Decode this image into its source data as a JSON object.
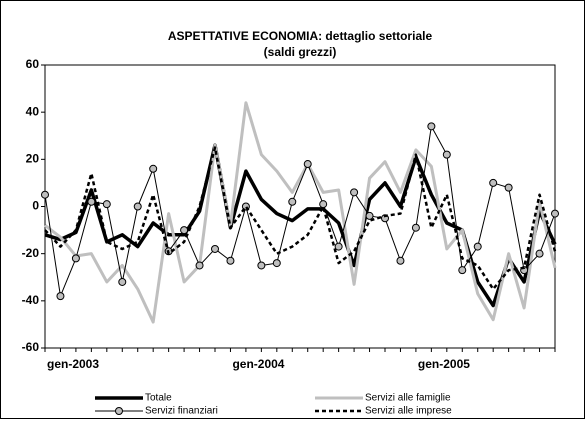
{
  "chart_data": {
    "type": "line",
    "title": "ASPETTATIVE ECONOMIA: dettaglio settoriale",
    "subtitle": "(saldi grezzi)",
    "categories": [
      "gen-2003",
      null,
      null,
      null,
      null,
      null,
      null,
      null,
      null,
      null,
      null,
      null,
      "gen-2004",
      null,
      null,
      null,
      null,
      null,
      null,
      null,
      null,
      null,
      null,
      null,
      "gen-2005",
      null,
      null,
      null,
      null,
      null,
      null,
      null,
      null,
      null
    ],
    "series": [
      {
        "name": "Totale",
        "color": "#000000",
        "line_width": 3.5,
        "dashed": false,
        "marker": false,
        "values": [
          -12,
          -14,
          -11,
          7,
          -15,
          -12,
          -17,
          -7,
          -12,
          -12,
          -2,
          26,
          -9,
          15,
          3,
          -3,
          -6,
          -1,
          -1,
          -7,
          -25,
          3,
          10,
          0,
          21,
          5,
          -7,
          -10,
          -32,
          -42,
          -22,
          -32,
          -2,
          -16
        ]
      },
      {
        "name": "Servizi alle famiglie",
        "color": "#bfbfbf",
        "line_width": 3,
        "dashed": false,
        "marker": false,
        "values": [
          -8,
          -13,
          -21,
          -20,
          -32,
          -25,
          -35,
          -49,
          -3,
          -32,
          -25,
          26,
          -8,
          44,
          22,
          15,
          6,
          18,
          6,
          7,
          -33,
          12,
          19,
          6,
          24,
          17,
          -18,
          -10,
          -37,
          -48,
          -20,
          -43,
          2,
          -26
        ]
      },
      {
        "name": "Servizi finanziari",
        "color": "#000000",
        "line_width": 1,
        "dashed": false,
        "marker": true,
        "values": [
          5,
          -38,
          -22,
          2,
          1,
          -32,
          0,
          16,
          -19,
          -10,
          -25,
          -18,
          -23,
          0,
          -25,
          -24,
          2,
          18,
          1,
          -17,
          6,
          -4,
          -5,
          -23,
          -9,
          34,
          22,
          -27,
          -17,
          10,
          8,
          -27,
          -20,
          -3
        ]
      },
      {
        "name": "Servizi alle imprese",
        "color": "#000000",
        "line_width": 2.5,
        "dashed": true,
        "marker": false,
        "values": [
          -10,
          -17,
          -10,
          14,
          -15,
          -18,
          -15,
          5,
          -20,
          -15,
          0,
          25,
          -9,
          0,
          -10,
          -20,
          -17,
          -12,
          0,
          -24,
          -19,
          -6,
          -4,
          -3,
          22,
          -9,
          5,
          -22,
          -25,
          -35,
          -27,
          -26,
          5,
          -19
        ]
      }
    ],
    "ylim": [
      -60,
      60
    ],
    "yticks": [
      -60,
      -40,
      -20,
      0,
      20,
      40,
      60
    ],
    "grid": false
  }
}
